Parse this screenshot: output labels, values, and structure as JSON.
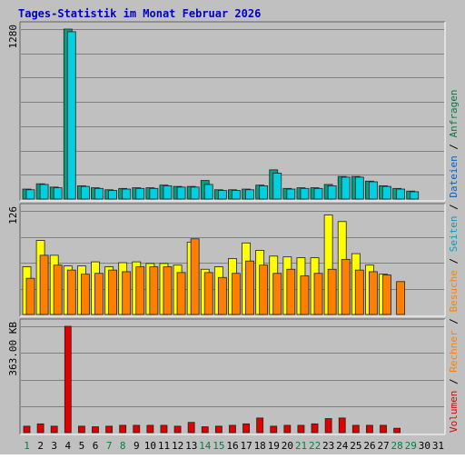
{
  "chart_data": {
    "type": "bar",
    "title": "Tages-Statistik im Monat Februar 2026",
    "categories": [
      "1",
      "2",
      "3",
      "4",
      "5",
      "6",
      "7",
      "8",
      "9",
      "10",
      "11",
      "12",
      "13",
      "14",
      "15",
      "16",
      "17",
      "18",
      "19",
      "20",
      "21",
      "22",
      "23",
      "24",
      "25",
      "26",
      "27",
      "28",
      "29",
      "30",
      "31"
    ],
    "weekend_categories": [
      "1",
      "7",
      "8",
      "14",
      "15",
      "21",
      "22",
      "28",
      "29"
    ],
    "grid": true,
    "legend_placement": "right",
    "legend": [
      {
        "label": "Anfragen",
        "color": "#008040"
      },
      {
        "label": "Dateien",
        "color": "#0060d0"
      },
      {
        "label": "Seiten",
        "color": "#00a0c0"
      },
      {
        "label": "Besuche",
        "color": "#ff8000"
      },
      {
        "label": "Rechner",
        "color": "#ff8000"
      },
      {
        "label": "Volumen",
        "color": "#e00000"
      }
    ],
    "panels": [
      {
        "name": "requests",
        "axis_label": "1280",
        "ylim": [
          0,
          1280
        ],
        "series": [
          {
            "name": "Anfragen",
            "color": "#00a080",
            "values": [
              75,
              115,
              90,
              1280,
              100,
              85,
              70,
              80,
              85,
              85,
              105,
              95,
              95,
              140,
              70,
              70,
              75,
              105,
              220,
              80,
              85,
              85,
              110,
              170,
              170,
              135,
              100,
              80,
              60,
              null,
              null
            ]
          },
          {
            "name": "Dateien",
            "color": "#00d0e0",
            "values": [
              70,
              110,
              85,
              1260,
              95,
              80,
              65,
              75,
              80,
              80,
              100,
              90,
              90,
              110,
              65,
              65,
              70,
              100,
              195,
              75,
              80,
              80,
              100,
              165,
              165,
              130,
              95,
              75,
              55,
              null,
              null
            ]
          }
        ]
      },
      {
        "name": "visits",
        "axis_label": "126",
        "ylim": [
          0,
          126
        ],
        "series": [
          {
            "name": "Seiten",
            "color": "#ffff00",
            "values": [
              58,
              90,
              72,
              59,
              59,
              64,
              58,
              63,
              64,
              62,
              62,
              60,
              88,
              55,
              58,
              68,
              87,
              78,
              71,
              70,
              69,
              69,
              121,
              113,
              74,
              60,
              49,
              null,
              null,
              null,
              null
            ]
          },
          {
            "name": "Besuche",
            "color": "#ff8000",
            "values": [
              44,
              72,
              60,
              54,
              49,
              50,
              54,
              52,
              58,
              58,
              58,
              51,
              92,
              51,
              45,
              50,
              65,
              60,
              50,
              55,
              47,
              50,
              55,
              67,
              54,
              52,
              48,
              40,
              null,
              null,
              null
            ]
          }
        ]
      },
      {
        "name": "volume",
        "axis_label": "363.00 KB",
        "ylim": [
          0,
          363
        ],
        "series": [
          {
            "name": "Volumen",
            "color": "#e00000",
            "values": [
              22,
              30,
              22,
              363,
              22,
              20,
              22,
              25,
              25,
              25,
              25,
              22,
              35,
              20,
              22,
              25,
              30,
              50,
              22,
              25,
              25,
              30,
              48,
              50,
              25,
              25,
              25,
              15,
              null,
              null,
              null
            ]
          }
        ]
      }
    ]
  }
}
